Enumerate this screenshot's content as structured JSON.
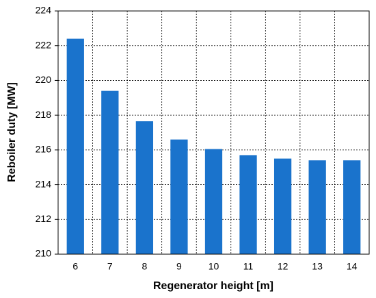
{
  "chart_data": {
    "type": "bar",
    "x_label": "Regenerator height [m]",
    "y_label": "Reboiler duty [MW]",
    "categories": [
      "6",
      "7",
      "8",
      "9",
      "10",
      "11",
      "12",
      "13",
      "14"
    ],
    "values": [
      222.4,
      219.4,
      217.65,
      216.6,
      216.05,
      215.7,
      215.5,
      215.4,
      215.4
    ],
    "color": "#1a73cc",
    "ylim": [
      210,
      224
    ],
    "yticks": [
      210,
      212,
      214,
      216,
      218,
      220,
      222,
      224
    ],
    "grid": true
  }
}
